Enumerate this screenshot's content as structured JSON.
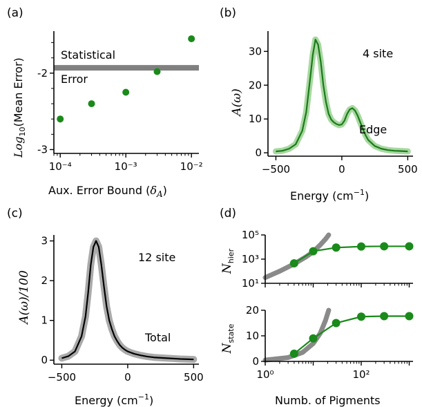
{
  "chart_data": [
    {
      "panel": "(a)",
      "type": "scatter",
      "xlabel": "Aux. Error Bound (δ_A)",
      "ylabel": "Log10(Mean Error)",
      "x_scale": "log",
      "xlim": [
        8e-05,
        0.013
      ],
      "ylim": [
        -3.05,
        -1.45
      ],
      "x_ticks": [
        0.0001,
        0.001,
        0.01
      ],
      "x_tick_labels": [
        "10⁻⁴",
        "10⁻³",
        "10⁻²"
      ],
      "y_ticks": [
        -2,
        -3
      ],
      "y_tick_labels": [
        "-2",
        "-3"
      ],
      "series": [
        {
          "color": "#1a8a1a",
          "x": [
            0.0001,
            0.0003,
            0.001,
            0.003,
            0.01
          ],
          "y": [
            -2.6,
            -2.4,
            -2.25,
            -1.98,
            -1.55
          ]
        }
      ],
      "hline": {
        "y": -1.93,
        "color": "#808080"
      },
      "annotations": [
        "Statistical",
        "Error"
      ]
    },
    {
      "panel": "(b)",
      "type": "line",
      "xlabel": "Energy (cm⁻¹)",
      "ylabel": "A(ω)",
      "xlim": [
        -560,
        540
      ],
      "ylim": [
        -1,
        36
      ],
      "x_ticks": [
        -500,
        0,
        500
      ],
      "x_tick_labels": [
        "−500",
        "0",
        "500"
      ],
      "y_ticks": [
        0,
        10,
        20,
        30
      ],
      "y_tick_labels": [
        "0",
        "10",
        "20",
        "30"
      ],
      "series": [
        {
          "color": "#1a7a1a",
          "band_color": "#a8d8a0",
          "x": [
            -500,
            -450,
            -400,
            -350,
            -300,
            -270,
            -240,
            -220,
            -200,
            -180,
            -160,
            -140,
            -120,
            -100,
            -80,
            -60,
            -40,
            -20,
            0,
            20,
            40,
            60,
            80,
            100,
            120,
            140,
            160,
            180,
            200,
            250,
            300,
            350,
            400,
            450,
            500
          ],
          "y": [
            0.4,
            0.6,
            1.2,
            2.5,
            6.5,
            12,
            22,
            29,
            33.5,
            32,
            27,
            20,
            15,
            11.5,
            9.8,
            9,
            8.5,
            8.2,
            8.4,
            9.5,
            11.5,
            12.8,
            13.2,
            12.5,
            11,
            9,
            7,
            5.2,
            3.8,
            2.0,
            1.2,
            0.8,
            0.6,
            0.5,
            0.4
          ]
        }
      ],
      "annotations": [
        "4 site",
        "Edge"
      ]
    },
    {
      "panel": "(c)",
      "type": "line",
      "xlabel": "Energy (cm⁻¹)",
      "ylabel": "A(ω)/100",
      "xlim": [
        -560,
        540
      ],
      "ylim": [
        -0.1,
        3.15
      ],
      "x_ticks": [
        -500,
        0,
        500
      ],
      "x_tick_labels": [
        "−500",
        "0",
        "500"
      ],
      "y_ticks": [
        0,
        1,
        2,
        3
      ],
      "y_tick_labels": [
        "0",
        "1",
        "2",
        "3"
      ],
      "series": [
        {
          "color": "#000000",
          "band_color": "#aaaaaa",
          "x": [
            -500,
            -450,
            -400,
            -350,
            -320,
            -300,
            -280,
            -260,
            -240,
            -220,
            -200,
            -180,
            -160,
            -140,
            -120,
            -100,
            -80,
            -60,
            -40,
            -20,
            0,
            50,
            100,
            150,
            200,
            300,
            400,
            500
          ],
          "y": [
            0.05,
            0.1,
            0.22,
            0.6,
            1.1,
            1.7,
            2.4,
            2.85,
            3.0,
            2.85,
            2.4,
            1.85,
            1.35,
            1.0,
            0.78,
            0.6,
            0.48,
            0.38,
            0.31,
            0.26,
            0.22,
            0.16,
            0.12,
            0.09,
            0.07,
            0.05,
            0.03,
            0.02
          ]
        }
      ],
      "annotations": [
        "12 site",
        "Total"
      ]
    },
    {
      "panel": "(d)",
      "subplot": "top",
      "type": "line",
      "xlabel": "",
      "ylabel": "N_hier",
      "x_scale": "log",
      "y_scale": "log",
      "xlim": [
        1,
        1200
      ],
      "ylim": [
        10,
        100000
      ],
      "y_ticks": [
        10,
        1000,
        100000
      ],
      "y_tick_labels": [
        "10¹",
        "10³",
        "10⁵"
      ],
      "series": [
        {
          "color": "#1a8a1a",
          "x": [
            4,
            10,
            30,
            100,
            300,
            1000
          ],
          "y": [
            450,
            4500,
            9000,
            11000,
            11500,
            11500
          ]
        }
      ],
      "reference_curve": {
        "color": "#8a8a8a",
        "x": [
          1,
          2,
          4,
          7,
          10,
          14,
          18,
          21
        ],
        "y": [
          30,
          100,
          400,
          1500,
          4000,
          15000,
          45000,
          100000
        ]
      }
    },
    {
      "panel": "(d)",
      "subplot": "bottom",
      "type": "line",
      "xlabel": "Numb. of Pigments",
      "ylabel": "N_state",
      "x_scale": "log",
      "xlim": [
        1,
        1200
      ],
      "ylim": [
        0,
        20
      ],
      "x_ticks": [
        1,
        100
      ],
      "x_tick_labels": [
        "10⁰",
        "10²"
      ],
      "y_ticks": [
        0,
        10,
        20
      ],
      "y_tick_labels": [
        "0",
        "10",
        "20"
      ],
      "series": [
        {
          "color": "#1a8a1a",
          "x": [
            4,
            10,
            30,
            100,
            300,
            1000
          ],
          "y": [
            3,
            9,
            15,
            17.5,
            17.7,
            17.7
          ]
        }
      ],
      "reference_curve": {
        "color": "#8a8a8a",
        "x": [
          1,
          3,
          6,
          10,
          14,
          18,
          21
        ],
        "y": [
          0.5,
          1.5,
          3.5,
          7,
          11,
          16,
          20
        ]
      }
    }
  ]
}
